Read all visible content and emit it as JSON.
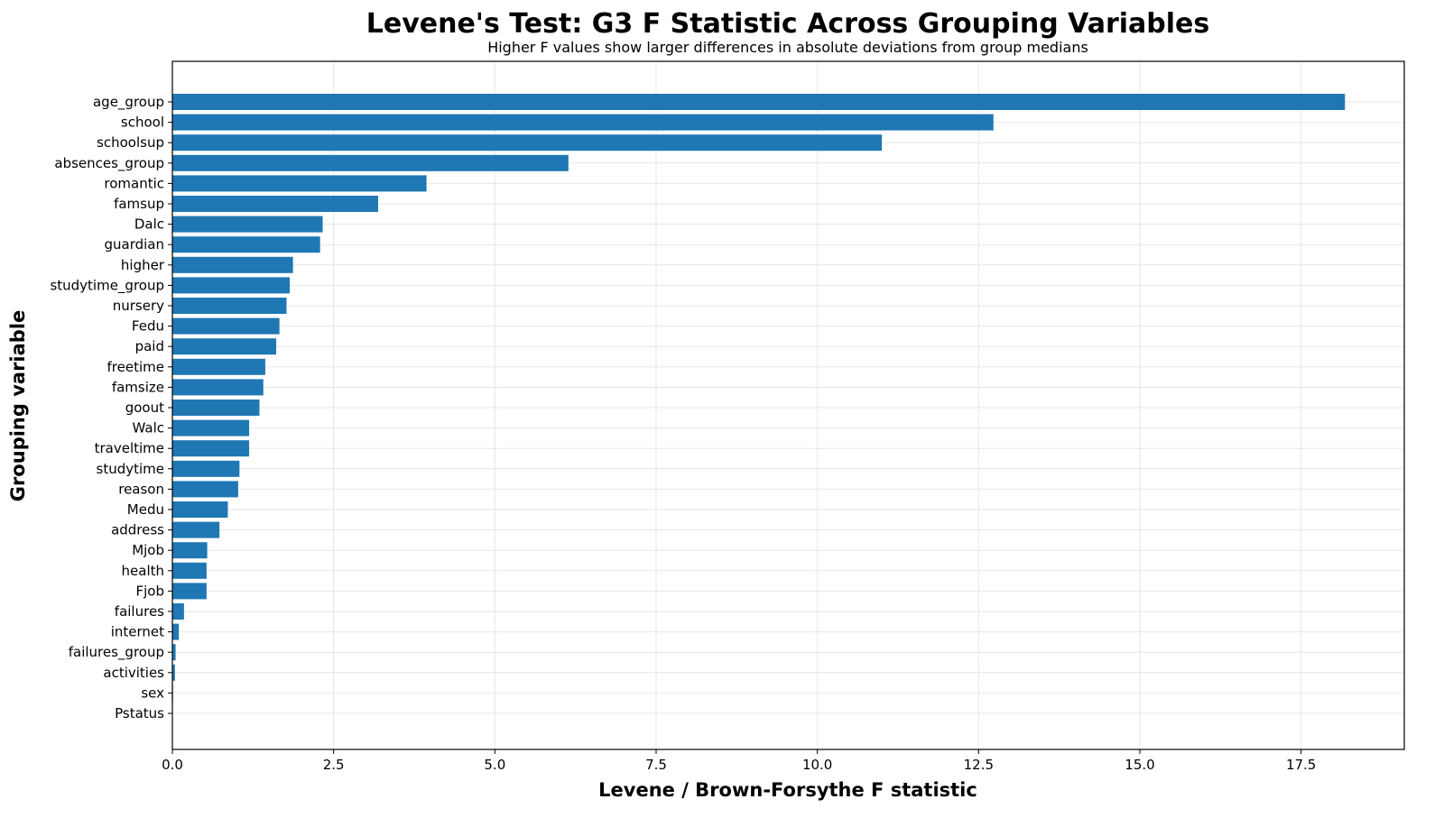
{
  "chart_data": {
    "type": "bar",
    "orientation": "horizontal",
    "title": "Levene's Test: G3 F Statistic Across Grouping Variables",
    "subtitle": "Higher F values show larger differences in absolute deviations from group medians",
    "xlabel": "Levene / Brown-Forsythe F statistic",
    "ylabel": "Grouping variable",
    "xlim": [
      0,
      19.1
    ],
    "xticks": [
      "0.0",
      "2.5",
      "5.0",
      "7.5",
      "10.0",
      "12.5",
      "15.0",
      "17.5"
    ],
    "grid": true,
    "bar_color": "#1f77b4",
    "categories": [
      "age_group",
      "school",
      "schoolsup",
      "absences_group",
      "romantic",
      "famsup",
      "Dalc",
      "guardian",
      "higher",
      "studytime_group",
      "nursery",
      "Fedu",
      "paid",
      "freetime",
      "famsize",
      "goout",
      "Walc",
      "traveltime",
      "studytime",
      "reason",
      "Medu",
      "address",
      "Mjob",
      "health",
      "Fjob",
      "failures",
      "internet",
      "failures_group",
      "activities",
      "sex",
      "Pstatus"
    ],
    "values": [
      18.18,
      12.73,
      11.0,
      6.14,
      3.94,
      3.19,
      2.33,
      2.29,
      1.87,
      1.82,
      1.77,
      1.66,
      1.61,
      1.44,
      1.41,
      1.35,
      1.19,
      1.19,
      1.04,
      1.02,
      0.86,
      0.73,
      0.54,
      0.53,
      0.53,
      0.18,
      0.1,
      0.05,
      0.04,
      0.01,
      0.0
    ]
  }
}
